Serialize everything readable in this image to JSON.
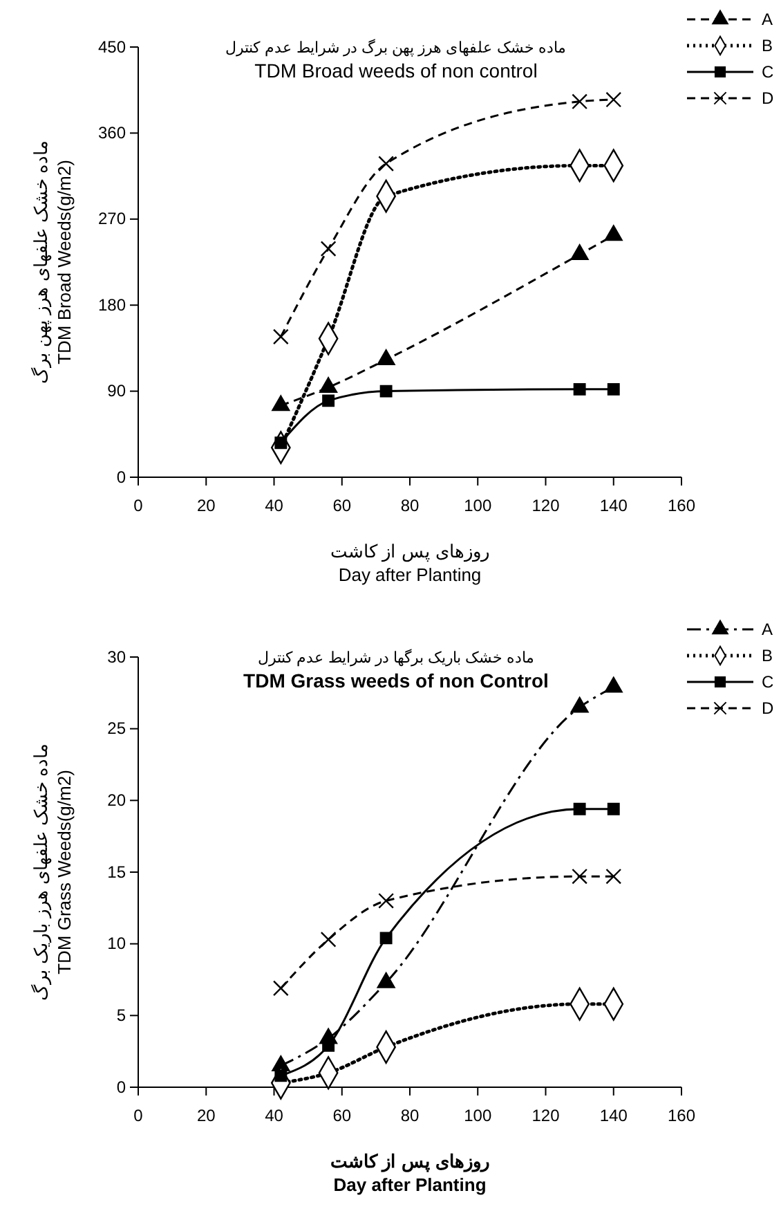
{
  "chart_data": [
    {
      "type": "line",
      "title": "ماده خشک علفهای هرز پهن برگ در شرایط عدم کنترل",
      "subtitle": "TDM Broad weeds of non control",
      "xlabel": "روزهای پس از کاشت\nDay after Planting",
      "ylabel": "ماده خشک علفهای هرز پهن برگ\nTDM Broad Weeds(g/m2)",
      "x": [
        42,
        56,
        73,
        130,
        140
      ],
      "xlim": [
        0,
        160
      ],
      "xticks": [
        0,
        20,
        40,
        60,
        80,
        100,
        120,
        140,
        160
      ],
      "ylim": [
        0,
        450
      ],
      "yticks": [
        0,
        90,
        180,
        270,
        360,
        450
      ],
      "grid": false,
      "legend": "top right",
      "series": [
        {
          "name": "A",
          "color": "#000000",
          "marker": "triangle",
          "line_style": "dashed",
          "values": [
            75,
            94,
            123,
            233,
            253
          ]
        },
        {
          "name": "B",
          "color": "#000000",
          "marker": "diamond",
          "line_style": "dotted",
          "values": [
            31,
            145,
            294,
            326,
            326
          ]
        },
        {
          "name": "C",
          "color": "#000000",
          "marker": "square",
          "line_style": "solid",
          "values": [
            36,
            80,
            90,
            92,
            92
          ]
        },
        {
          "name": "D",
          "color": "#000000",
          "marker": "cross",
          "line_style": "dashed",
          "values": [
            147,
            239,
            328,
            393,
            395
          ]
        }
      ]
    },
    {
      "type": "line",
      "title": "ماده خشک باریک برگها در شرایط عدم کنترل",
      "subtitle": "TDM Grass weeds of non Control",
      "xlabel": "روزهای پس از کاشت\nDay after Planting",
      "ylabel": "ماده خشک علفهای هرز باریک برگ\nTDM Grass Weeds(g/m2)",
      "x": [
        42,
        56,
        73,
        130,
        140
      ],
      "xlim": [
        0,
        160
      ],
      "xticks": [
        0,
        20,
        40,
        60,
        80,
        100,
        120,
        140,
        160
      ],
      "ylim": [
        0,
        30
      ],
      "yticks": [
        0,
        5,
        10,
        15,
        20,
        25,
        30
      ],
      "grid": false,
      "legend": "top right",
      "series": [
        {
          "name": "A",
          "color": "#000000",
          "marker": "triangle",
          "line_style": "dashdot",
          "values": [
            1.5,
            3.4,
            7.3,
            26.5,
            27.9
          ]
        },
        {
          "name": "B",
          "color": "#000000",
          "marker": "diamond",
          "line_style": "dotted",
          "values": [
            0.3,
            1.0,
            2.8,
            5.8,
            5.8
          ]
        },
        {
          "name": "C",
          "color": "#000000",
          "marker": "square",
          "line_style": "solid",
          "values": [
            0.8,
            2.9,
            10.4,
            19.4,
            19.4
          ]
        },
        {
          "name": "D",
          "color": "#000000",
          "marker": "cross",
          "line_style": "dashed",
          "values": [
            6.9,
            10.3,
            13.0,
            14.7,
            14.7
          ]
        }
      ]
    }
  ]
}
